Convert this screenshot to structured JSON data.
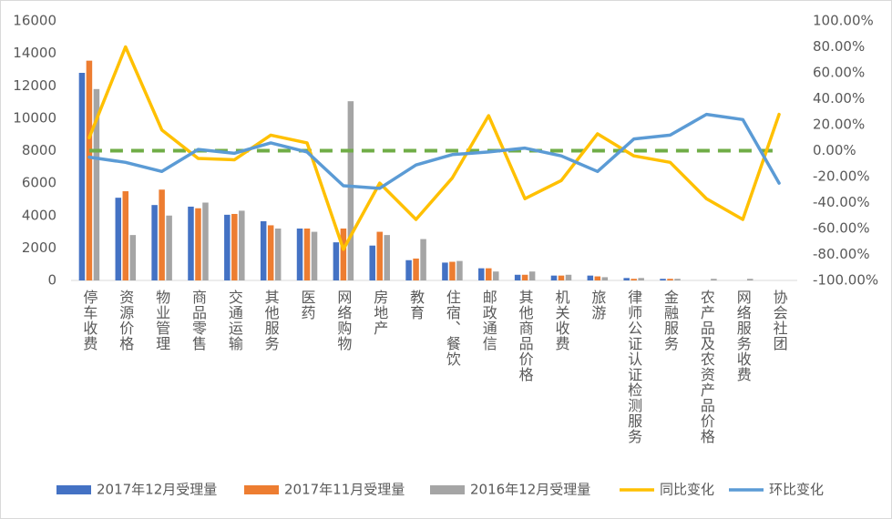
{
  "chart_data": {
    "type": "bar_line",
    "categories": [
      "停车收费",
      "资源价格",
      "物业管理",
      "商品零售",
      "交通运输",
      "其他服务",
      "医药",
      "网络购物",
      "房地产",
      "教育",
      "住宿、餐饮",
      "邮政通信",
      "其他商品价格",
      "机关收费",
      "旅游",
      "律师公证认证检测服务",
      "金融服务",
      "农产品及农资产品价格",
      "网络服务收费",
      "协会社团"
    ],
    "series": [
      {
        "name": "2017年12月受理量",
        "type": "bar",
        "color": "#4472c4",
        "values": [
          12800,
          5100,
          4650,
          4550,
          4050,
          3650,
          3200,
          2350,
          2150,
          1250,
          1100,
          750,
          350,
          300,
          300,
          150,
          100,
          0,
          0,
          0
        ]
      },
      {
        "name": "2017年11月受理量",
        "type": "bar",
        "color": "#ed7d31",
        "values": [
          13550,
          5500,
          5600,
          4450,
          4100,
          3400,
          3200,
          3200,
          3000,
          1350,
          1150,
          750,
          350,
          300,
          250,
          100,
          100,
          0,
          0,
          0
        ]
      },
      {
        "name": "2016年12月受理量",
        "type": "bar",
        "color": "#a5a5a5",
        "values": [
          11800,
          2800,
          4000,
          4800,
          4300,
          3200,
          3000,
          11050,
          2800,
          2550,
          1200,
          550,
          550,
          350,
          200,
          150,
          100,
          100,
          100,
          0
        ]
      },
      {
        "name": "同比变化",
        "type": "line",
        "axis": "y2",
        "color": "#ffc000",
        "values": [
          10,
          80,
          16,
          -6,
          -7,
          12,
          6,
          -76,
          -25,
          -53,
          -21,
          27,
          -37,
          -23,
          13,
          -4,
          -9,
          -37,
          -53,
          28
        ]
      },
      {
        "name": "环比变化",
        "type": "line",
        "axis": "y2",
        "color": "#5b9bd5",
        "values": [
          -5,
          -9,
          -16,
          1,
          -2,
          6,
          -1,
          -27,
          -29,
          -11,
          -3,
          -1,
          2,
          -4,
          -16,
          9,
          12,
          28,
          24,
          -25
        ]
      }
    ],
    "reference_line": {
      "value": 0,
      "axis": "y2",
      "color": "#70ad47"
    },
    "ylim": [
      0,
      16000
    ],
    "yticks": [
      0,
      2000,
      4000,
      6000,
      8000,
      10000,
      12000,
      14000,
      16000
    ],
    "y2lim": [
      -100,
      100
    ],
    "y2ticks": [
      {
        "value": -100,
        "label": "-100.00%"
      },
      {
        "value": -80,
        "label": "-80.00%"
      },
      {
        "value": -60,
        "label": "-60.00%"
      },
      {
        "value": -40,
        "label": "-40.00%"
      },
      {
        "value": -20,
        "label": "-20.00%"
      },
      {
        "value": 0,
        "label": "0.00%"
      },
      {
        "value": 20,
        "label": "20.00%"
      },
      {
        "value": 40,
        "label": "40.00%"
      },
      {
        "value": 60,
        "label": "60.00%"
      },
      {
        "value": 80,
        "label": "80.00%"
      },
      {
        "value": 100,
        "label": "100.00%"
      }
    ],
    "grid": false,
    "legend": "bottom"
  }
}
